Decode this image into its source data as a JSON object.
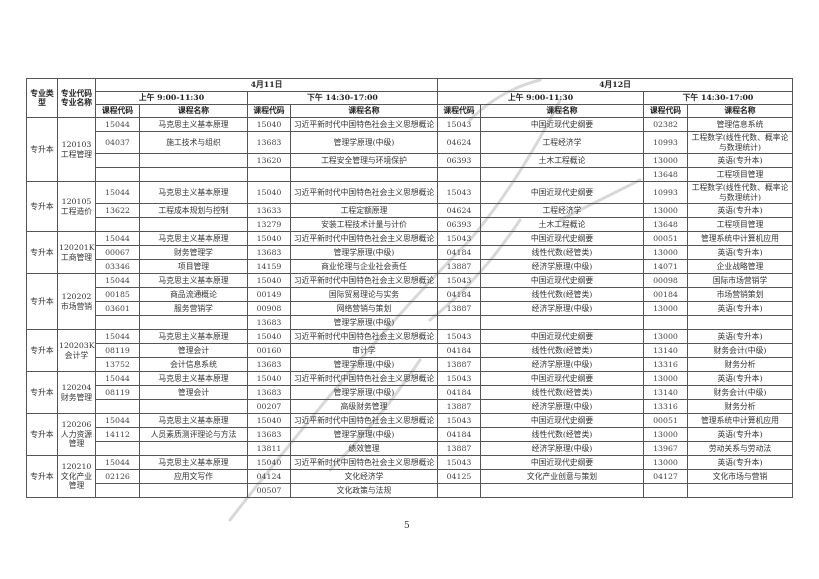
{
  "header": {
    "type_label": "专业类型",
    "major_label_1": "专业代码",
    "major_label_2": "专业名称",
    "days": [
      "4月11日",
      "4月12日"
    ],
    "sessions": [
      "上午 9:00-11:30",
      "下午 14:30-17:00",
      "上午 9:00-11:30",
      "下午 14:30-17:00"
    ],
    "code_col": "课程代码",
    "name_col": "课程名称"
  },
  "groups": [
    {
      "type": "专升本",
      "code": "120103",
      "name": "工程管理",
      "tall": [
        1
      ],
      "rows": [
        [
          "15044",
          "马克思主义基本原理",
          "15040",
          "习近平新时代中国特色社会主义思想概论",
          "15043",
          "中国近现代史纲要",
          "02382",
          "管理信息系统"
        ],
        [
          "04037",
          "施工技术与组织",
          "13683",
          "管理学原理(中级)",
          "04624",
          "工程经济学",
          "10993",
          "工程数学(线性代数、概率论与数理统计)"
        ],
        [
          "",
          "",
          "13620",
          "工程安全管理与环境保护",
          "06393",
          "土木工程概论",
          "13000",
          "英语(专升本)"
        ],
        [
          "",
          "",
          "",
          "",
          "",
          "",
          "13648",
          "工程项目管理"
        ]
      ]
    },
    {
      "type": "专升本",
      "code": "120105",
      "name": "工程造价",
      "tall": [
        0
      ],
      "rows": [
        [
          "15044",
          "马克思主义基本原理",
          "15040",
          "习近平新时代中国特色社会主义思想概论",
          "15043",
          "中国近现代史纲要",
          "10993",
          "工程数学(线性代数、概率论与数理统计)"
        ],
        [
          "13622",
          "工程成本规划与控制",
          "13633",
          "工程定额原理",
          "04624",
          "工程经济学",
          "13000",
          "英语(专升本)"
        ],
        [
          "",
          "",
          "13279",
          "安装工程技术计量与计价",
          "06393",
          "土木工程概论",
          "13648",
          "工程项目管理"
        ]
      ]
    },
    {
      "type": "专升本",
      "code": "120201K",
      "name": "工商管理",
      "tall": [],
      "rows": [
        [
          "15044",
          "马克思主义基本原理",
          "15040",
          "习近平新时代中国特色社会主义思想概论",
          "15043",
          "中国近现代史纲要",
          "00051",
          "管理系统中计算机应用"
        ],
        [
          "00067",
          "财务管理学",
          "13683",
          "管理学原理(中级)",
          "04184",
          "线性代数(经管类)",
          "13000",
          "英语(专升本)"
        ],
        [
          "03346",
          "项目管理",
          "14159",
          "商业伦理与企业社会责任",
          "13887",
          "经济学原理(中级)",
          "14071",
          "企业战略管理"
        ]
      ]
    },
    {
      "type": "专升本",
      "code": "120202",
      "name": "市场营销",
      "tall": [],
      "rows": [
        [
          "15044",
          "马克思主义基本原理",
          "15040",
          "习近平新时代中国特色社会主义思想概论",
          "15043",
          "中国近现代史纲要",
          "00098",
          "国际市场营销学"
        ],
        [
          "00185",
          "商品流通概论",
          "00149",
          "国际贸易理论与实务",
          "04184",
          "线性代数(经管类)",
          "00184",
          "市场营销策划"
        ],
        [
          "03601",
          "服务营销学",
          "00908",
          "网络营销与策划",
          "13887",
          "经济学原理(中级)",
          "13000",
          "英语(专升本)"
        ],
        [
          "",
          "",
          "13683",
          "管理学原理(中级)",
          "",
          "",
          "",
          ""
        ]
      ]
    },
    {
      "type": "专升本",
      "code": "120203K",
      "name": "会计学",
      "tall": [],
      "rows": [
        [
          "15044",
          "马克思主义基本原理",
          "15040",
          "习近平新时代中国特色社会主义思想概论",
          "15043",
          "中国近现代史纲要",
          "13000",
          "英语(专升本)"
        ],
        [
          "08119",
          "管理会计",
          "00160",
          "审计学",
          "04184",
          "线性代数(经管类)",
          "13140",
          "财务会计(中级)"
        ],
        [
          "13752",
          "会计信息系统",
          "13683",
          "管理学原理(中级)",
          "13887",
          "经济学原理(中级)",
          "13316",
          "财务分析"
        ]
      ]
    },
    {
      "type": "专升本",
      "code": "120204",
      "name": "财务管理",
      "tall": [],
      "rows": [
        [
          "15044",
          "马克思主义基本原理",
          "15040",
          "习近平新时代中国特色社会主义思想概论",
          "15043",
          "中国近现代史纲要",
          "13000",
          "英语(专升本)"
        ],
        [
          "08119",
          "管理会计",
          "13683",
          "管理学原理(中级)",
          "04184",
          "线性代数(经管类)",
          "13140",
          "财务会计(中级)"
        ],
        [
          "",
          "",
          "00207",
          "高级财务管理",
          "13887",
          "经济学原理(中级)",
          "13316",
          "财务分析"
        ]
      ]
    },
    {
      "type": "专升本",
      "code": "120206",
      "name": "人力资源管理",
      "tall": [],
      "rows": [
        [
          "15044",
          "马克思主义基本原理",
          "15040",
          "习近平新时代中国特色社会主义思想概论",
          "15043",
          "中国近现代史纲要",
          "00051",
          "管理系统中计算机应用"
        ],
        [
          "14112",
          "人员素质测评理论与方法",
          "13683",
          "管理学原理(中级)",
          "04184",
          "线性代数(经管类)",
          "13000",
          "英语(专升本)"
        ],
        [
          "",
          "",
          "13811",
          "绩效管理",
          "13887",
          "经济学原理(中级)",
          "13967",
          "劳动关系与劳动法"
        ]
      ]
    },
    {
      "type": "专升本",
      "code": "120210",
      "name": "文化产业管理",
      "tall": [],
      "rows": [
        [
          "15044",
          "马克思主义基本原理",
          "15040",
          "习近平新时代中国特色社会主义思想概论",
          "15043",
          "中国近现代史纲要",
          "13000",
          "英语(专升本)"
        ],
        [
          "02126",
          "应用文写作",
          "04124",
          "文化经济学",
          "04125",
          "文化产业创意与策划",
          "04127",
          "文化市场与营销"
        ],
        [
          "",
          "",
          "00507",
          "文化政策与法规",
          "",
          "",
          "",
          ""
        ]
      ]
    }
  ],
  "page_number": "5"
}
